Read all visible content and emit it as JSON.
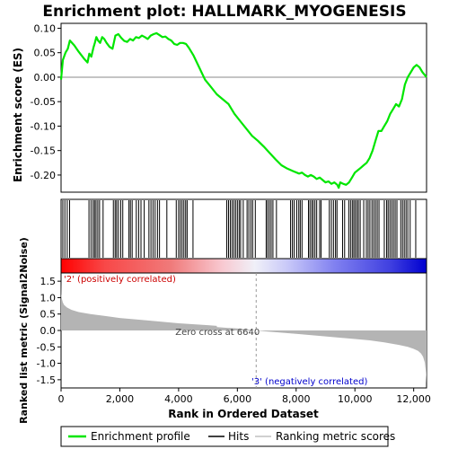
{
  "chart_data": [
    {
      "type": "line",
      "title": "Enrichment plot: HALLMARK_MYOGENESIS",
      "ylabel": "Enrichment score (ES)",
      "ylim": [
        -0.235,
        0.11
      ],
      "yticks": [
        "0.10",
        "0.05",
        "0.00",
        "-0.05",
        "-0.10",
        "-0.15",
        "-0.20"
      ],
      "ytick_values": [
        0.1,
        0.05,
        0.0,
        -0.05,
        -0.1,
        -0.15,
        -0.2
      ],
      "xlim": [
        0,
        12438
      ],
      "line_color": "#00e600",
      "series": [
        {
          "name": "Enrichment profile",
          "x": [
            0,
            60,
            150,
            230,
            300,
            450,
            600,
            780,
            900,
            960,
            1030,
            1100,
            1150,
            1200,
            1260,
            1330,
            1400,
            1470,
            1550,
            1650,
            1750,
            1850,
            1950,
            2050,
            2150,
            2250,
            2350,
            2450,
            2550,
            2650,
            2750,
            2850,
            2950,
            3050,
            3150,
            3250,
            3350,
            3450,
            3550,
            3650,
            3750,
            3850,
            3950,
            4050,
            4150,
            4250,
            4350,
            4500,
            4700,
            4900,
            5100,
            5300,
            5500,
            5700,
            5900,
            6100,
            6300,
            6500,
            6700,
            6900,
            7100,
            7300,
            7500,
            7700,
            7900,
            8100,
            8200,
            8300,
            8400,
            8500,
            8600,
            8700,
            8800,
            8900,
            9000,
            9100,
            9200,
            9300,
            9400,
            9450,
            9500,
            9600,
            9700,
            9800,
            9900,
            10000,
            10100,
            10200,
            10300,
            10400,
            10500,
            10600,
            10700,
            10800,
            10900,
            11000,
            11100,
            11200,
            11300,
            11400,
            11500,
            11600,
            11700,
            11800,
            11900,
            12000,
            12100,
            12200,
            12300,
            12438
          ],
          "y": [
            -0.005,
            0.035,
            0.05,
            0.058,
            0.075,
            0.065,
            0.052,
            0.038,
            0.03,
            0.048,
            0.042,
            0.06,
            0.07,
            0.082,
            0.075,
            0.07,
            0.082,
            0.078,
            0.07,
            0.062,
            0.058,
            0.085,
            0.088,
            0.08,
            0.074,
            0.072,
            0.078,
            0.075,
            0.082,
            0.08,
            0.085,
            0.082,
            0.078,
            0.085,
            0.088,
            0.09,
            0.086,
            0.082,
            0.083,
            0.078,
            0.075,
            0.068,
            0.066,
            0.07,
            0.07,
            0.068,
            0.06,
            0.045,
            0.02,
            -0.005,
            -0.02,
            -0.035,
            -0.045,
            -0.055,
            -0.075,
            -0.09,
            -0.105,
            -0.12,
            -0.13,
            -0.142,
            -0.155,
            -0.168,
            -0.18,
            -0.187,
            -0.192,
            -0.197,
            -0.195,
            -0.2,
            -0.203,
            -0.2,
            -0.203,
            -0.208,
            -0.205,
            -0.21,
            -0.215,
            -0.213,
            -0.218,
            -0.215,
            -0.22,
            -0.226,
            -0.215,
            -0.218,
            -0.22,
            -0.215,
            -0.205,
            -0.195,
            -0.19,
            -0.185,
            -0.18,
            -0.175,
            -0.165,
            -0.15,
            -0.13,
            -0.11,
            -0.11,
            -0.1,
            -0.09,
            -0.075,
            -0.065,
            -0.055,
            -0.06,
            -0.045,
            -0.015,
            0.0,
            0.01,
            0.02,
            0.025,
            0.02,
            0.01,
            0.0
          ]
        }
      ]
    },
    {
      "type": "hits",
      "series": [
        {
          "name": "Hits",
          "x": [
            60,
            130,
            210,
            290,
            950,
            1020,
            1090,
            1140,
            1190,
            1250,
            1310,
            1430,
            1780,
            1840,
            1890,
            1950,
            2030,
            2100,
            2310,
            2360,
            2420,
            2560,
            2640,
            2720,
            2830,
            2990,
            3060,
            3130,
            3200,
            3280,
            3350,
            3600,
            3920,
            4000,
            4060,
            4120,
            4180,
            4240,
            4290,
            4490,
            5640,
            5700,
            5760,
            5820,
            5880,
            5940,
            6000,
            6060,
            6110,
            6200,
            6330,
            6390,
            6460,
            6520,
            6610,
            6980,
            7030,
            7090,
            7150,
            7210,
            7330,
            7810,
            7870,
            7930,
            8020,
            8090,
            8140,
            8200,
            8420,
            8470,
            8530,
            8580,
            8640,
            8700,
            8800,
            8850,
            9130,
            9200,
            9270,
            9340,
            9390,
            9580,
            9650,
            9790,
            9850,
            9910,
            9960,
            10010,
            10070,
            10120,
            10180,
            10300,
            10390,
            10450,
            10510,
            10580,
            10640,
            10700,
            10760,
            10820,
            11000,
            11080,
            11130,
            11190,
            11250,
            11310,
            11370,
            11430,
            11560,
            11620,
            11680,
            11740,
            11800,
            11880,
            12070
          ]
        }
      ]
    },
    {
      "type": "area",
      "ylabel": "Ranked list metric (Signal2Noise)",
      "xlabel": "Rank in Ordered Dataset",
      "ylim": [
        -1.75,
        1.75
      ],
      "yticks": [
        "1.5",
        "1.0",
        "0.5",
        "0.0",
        "-0.5",
        "-1.0",
        "-1.5"
      ],
      "ytick_values": [
        1.5,
        1.0,
        0.5,
        0.0,
        -0.5,
        -1.0,
        -1.5
      ],
      "xlim": [
        0,
        12438
      ],
      "xticks": [
        "0",
        "2,000",
        "4,000",
        "6,000",
        "8,000",
        "10,000",
        "12,000"
      ],
      "xtick_values": [
        0,
        2000,
        4000,
        6000,
        8000,
        10000,
        12000
      ],
      "fill_color": "#b4b4b4",
      "zero_cross": 6640,
      "zero_cross_label": "Zero cross at 6640",
      "positive_label": "'2' (positively correlated)",
      "negative_label": "'3' (negatively correlated)",
      "series": [
        {
          "name": "Ranked list metric",
          "x": [
            0,
            10,
            30,
            60,
            100,
            200,
            350,
            600,
            1000,
            1500,
            2000,
            3000,
            4000,
            5000,
            5300,
            5301,
            6000,
            6640,
            7000,
            8000,
            9000,
            10000,
            10500,
            11000,
            11500,
            11800,
            12000,
            12150,
            12250,
            12320,
            12380,
            12420,
            12438
          ],
          "y": [
            1.55,
            1.1,
            0.95,
            0.85,
            0.78,
            0.7,
            0.63,
            0.56,
            0.5,
            0.44,
            0.38,
            0.3,
            0.22,
            0.16,
            0.14,
            0.1,
            0.06,
            0.0,
            -0.03,
            -0.1,
            -0.18,
            -0.26,
            -0.3,
            -0.36,
            -0.44,
            -0.5,
            -0.56,
            -0.62,
            -0.7,
            -0.8,
            -0.98,
            -1.3,
            -1.6
          ]
        }
      ]
    }
  ],
  "legend": {
    "items": [
      {
        "label": "Enrichment profile",
        "color": "#00e600"
      },
      {
        "label": "Hits",
        "color": "#000000"
      },
      {
        "label": "Ranking metric scores",
        "color": "#c0c0c0"
      }
    ]
  }
}
